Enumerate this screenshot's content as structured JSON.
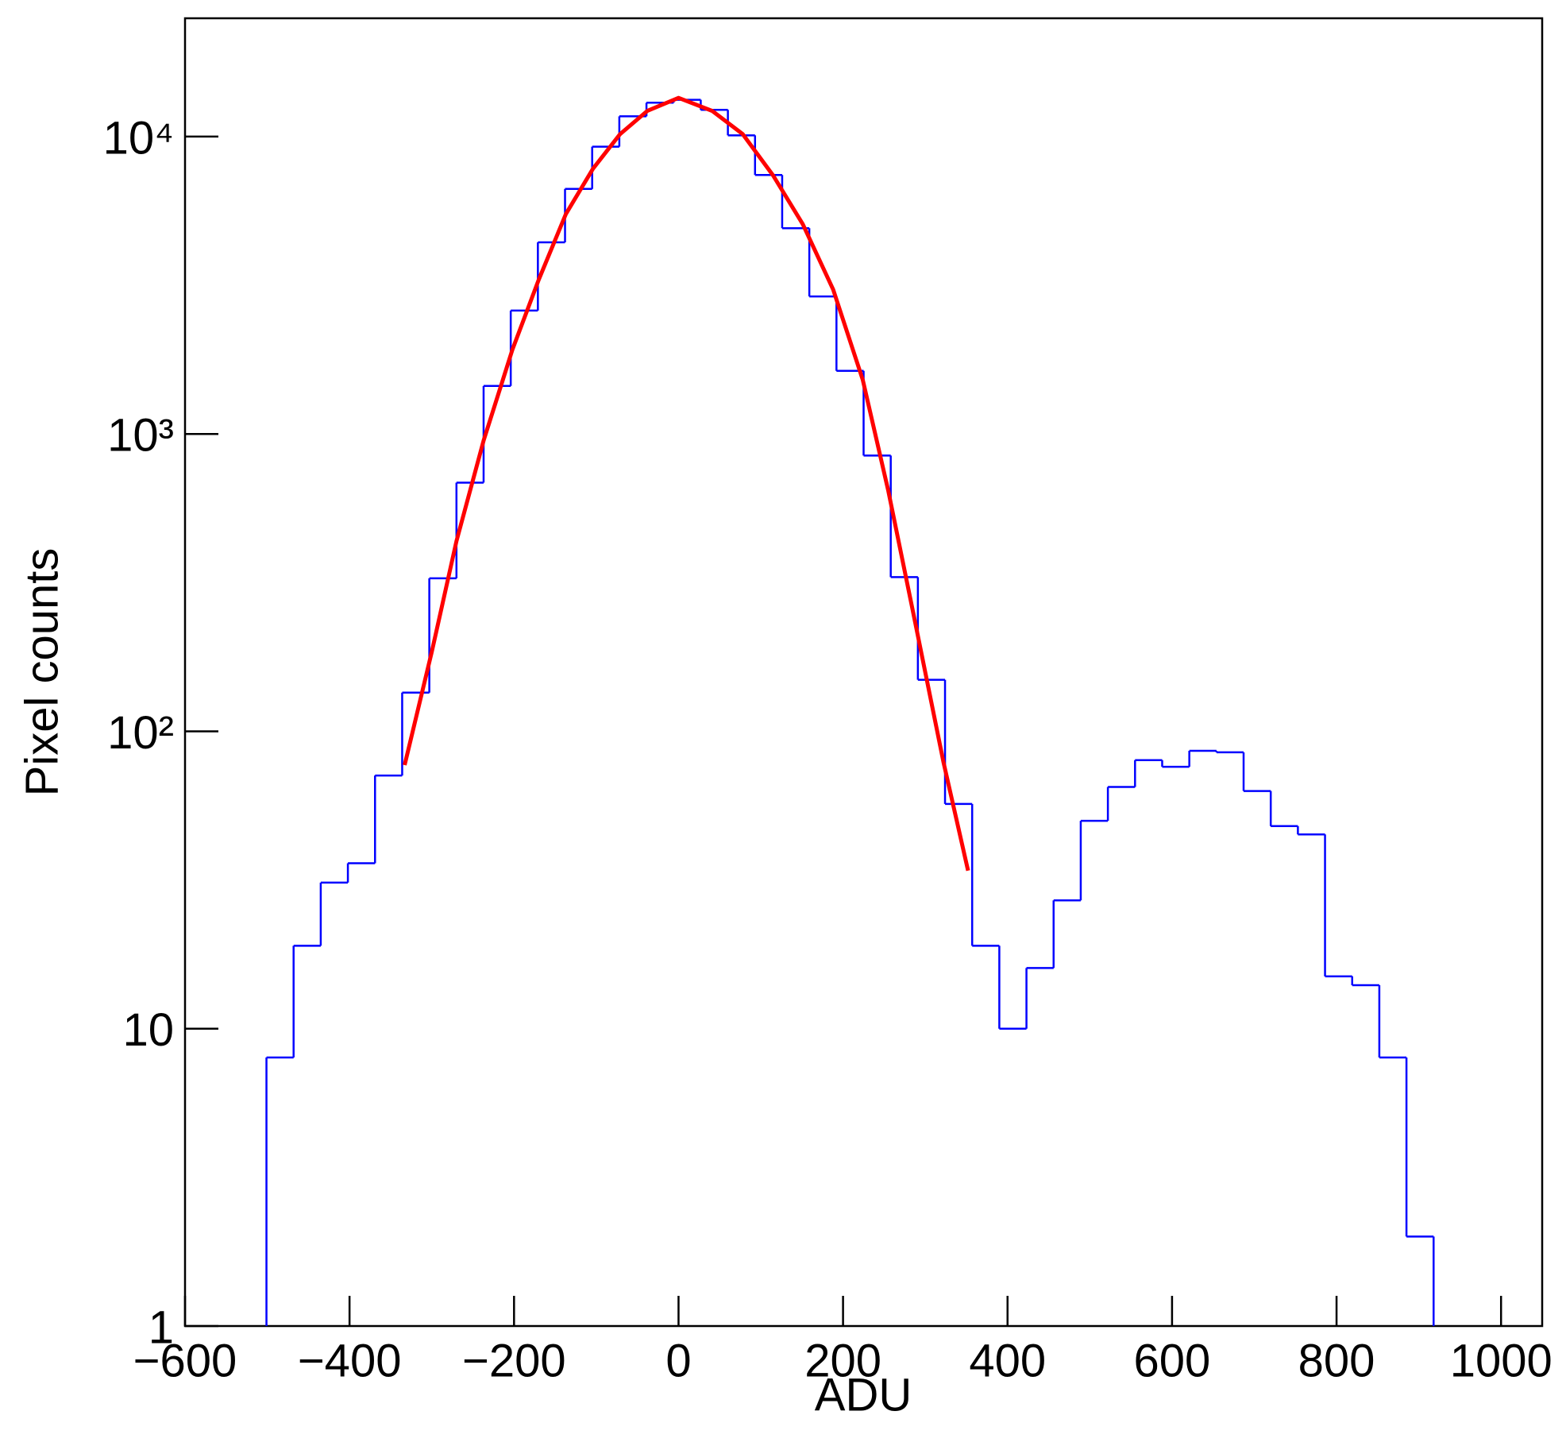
{
  "chart_data": {
    "type": "histogram",
    "x_label": "ADU",
    "y_label": "Pixel counts",
    "color": "#0000ff",
    "bins": [
      -501,
      -468,
      -435,
      -402,
      -369,
      -336,
      -303,
      -270,
      -237,
      -204,
      -171,
      -138,
      -105,
      -72,
      -39,
      -6,
      27,
      60,
      93,
      126,
      159,
      192,
      225,
      258,
      291,
      324,
      357,
      390,
      423,
      456,
      489,
      522,
      555,
      588,
      621,
      654,
      687,
      720,
      753,
      786,
      819,
      852,
      885,
      918
    ],
    "values": [
      8,
      19,
      31,
      36,
      71,
      135,
      327,
      686,
      1450,
      2600,
      4410,
      6670,
      9250,
      11700,
      13000,
      13300,
      12300,
      10100,
      7430,
      4920,
      2900,
      1630,
      846,
      330,
      149,
      57,
      19,
      10,
      16,
      27,
      50,
      65,
      80,
      76,
      86,
      85,
      63,
      48,
      45,
      15,
      14,
      8,
      2
    ],
    "fit": {
      "type": "line",
      "color": "#ff0000",
      "x": [
        -333,
        -300,
        -270,
        -237,
        -202,
        -170,
        -137,
        -104,
        -71,
        -38,
        0,
        41,
        78,
        115,
        151,
        188,
        224,
        255,
        285,
        322,
        352
      ],
      "values": [
        77,
        185,
        436,
        950,
        1920,
        3300,
        5490,
        7800,
        10200,
        12200,
        13500,
        12200,
        10200,
        7400,
        5080,
        3060,
        1520,
        644,
        253,
        79,
        34
      ]
    },
    "xlim": [
      -600,
      1050
    ],
    "xticks": [
      {
        "value": -600,
        "label": "−600"
      },
      {
        "value": -400,
        "label": "−400"
      },
      {
        "value": -200,
        "label": "−200"
      },
      0,
      200,
      400,
      600,
      800,
      1000
    ],
    "ylim": [
      1,
      25000
    ],
    "ylog": true,
    "yticks": [
      1,
      10,
      {
        "value": 100,
        "label": "10²"
      },
      {
        "value": 1000,
        "label": "10³"
      },
      {
        "value": 10000,
        "label": "10⁴"
      }
    ]
  }
}
